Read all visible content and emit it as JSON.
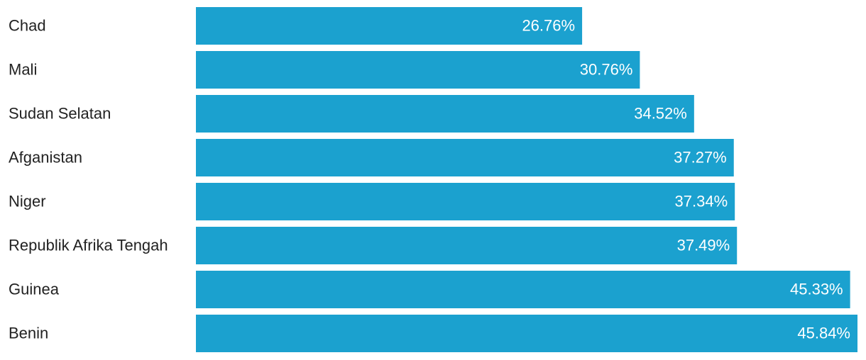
{
  "chart_data": {
    "type": "bar",
    "orientation": "horizontal",
    "categories": [
      "Chad",
      "Mali",
      "Sudan Selatan",
      "Afganistan",
      "Niger",
      "Republik Afrika Tengah",
      "Guinea",
      "Benin"
    ],
    "values": [
      26.76,
      30.76,
      34.52,
      37.27,
      37.34,
      37.49,
      45.33,
      45.84
    ],
    "value_labels": [
      "26.76%",
      "30.76%",
      "34.52%",
      "37.27%",
      "37.34%",
      "37.49%",
      "45.33%",
      "45.84%"
    ],
    "color": "#1ba1cf"
  }
}
